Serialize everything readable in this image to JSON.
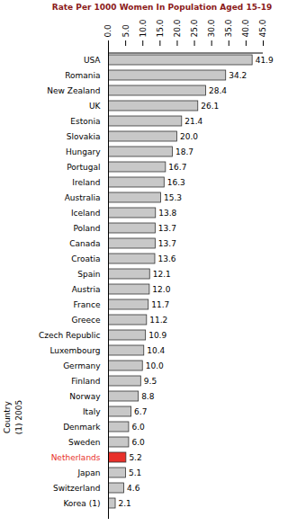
{
  "chart_data": {
    "type": "bar",
    "orientation": "horizontal",
    "title": "Rate Per 1000 Women In Population Aged 15-19",
    "y_label": "Country",
    "annotations": [
      "(1) 2005"
    ],
    "categories": [
      "USA",
      "Romania",
      "New Zealand",
      "UK",
      "Estonia",
      "Slovakia",
      "Hungary",
      "Portugal",
      "Ireland",
      "Australia",
      "Iceland",
      "Poland",
      "Canada",
      "Croatia",
      "Spain",
      "Austria",
      "France",
      "Greece",
      "Czech Republic",
      "Luxembourg",
      "Germany",
      "Finland",
      "Norway",
      "Italy",
      "Denmark",
      "Sweden",
      "Netherlands",
      "Japan",
      "Switzerland",
      "Korea (1)"
    ],
    "values": [
      41.9,
      34.2,
      28.4,
      26.1,
      21.4,
      20.0,
      18.7,
      16.7,
      16.3,
      15.3,
      13.8,
      13.7,
      13.7,
      13.6,
      12.1,
      12.0,
      11.7,
      11.2,
      10.9,
      10.4,
      10.0,
      9.5,
      8.8,
      6.7,
      6.0,
      6.0,
      5.2,
      5.1,
      4.6,
      2.1
    ],
    "value_labels": [
      "41.9",
      "34.2",
      "28.4",
      "26.1",
      "21.4",
      "20.0",
      "18.7",
      "16.7",
      "16.3",
      "15.3",
      "13.8",
      "13.7",
      "13.7",
      "13.6",
      "12.1",
      "12.0",
      "11.7",
      "11.2",
      "10.9",
      "10.4",
      "10.0",
      "9.5",
      "8.8",
      "6.7",
      "6.0",
      "6.0",
      "5.2",
      "5.1",
      "4.6",
      "2.1"
    ],
    "data_labels": true,
    "color": "#c8c8c8",
    "colors": [
      "#c8c8c8",
      "#c8c8c8",
      "#c8c8c8",
      "#c8c8c8",
      "#c8c8c8",
      "#c8c8c8",
      "#c8c8c8",
      "#c8c8c8",
      "#c8c8c8",
      "#c8c8c8",
      "#c8c8c8",
      "#c8c8c8",
      "#c8c8c8",
      "#c8c8c8",
      "#c8c8c8",
      "#c8c8c8",
      "#c8c8c8",
      "#c8c8c8",
      "#c8c8c8",
      "#c8c8c8",
      "#c8c8c8",
      "#c8c8c8",
      "#c8c8c8",
      "#c8c8c8",
      "#c8c8c8",
      "#c8c8c8",
      "#e8302a",
      "#c8c8c8",
      "#c8c8c8",
      "#c8c8c8"
    ],
    "xlim": [
      0,
      45
    ],
    "xticks": [
      {
        "value": 0,
        "label": "0.0"
      },
      {
        "value": 5,
        "label": "5.0"
      },
      {
        "value": 10,
        "label": "10.0"
      },
      {
        "value": 15,
        "label": "15.0"
      },
      {
        "value": 20,
        "label": "20.0"
      },
      {
        "value": 25,
        "label": "25.0"
      },
      {
        "value": 30,
        "label": "30.0"
      },
      {
        "value": 35,
        "label": "35.0"
      },
      {
        "value": 40,
        "label": "40.0"
      },
      {
        "value": 45,
        "label": "45.0"
      }
    ],
    "grid": false
  }
}
